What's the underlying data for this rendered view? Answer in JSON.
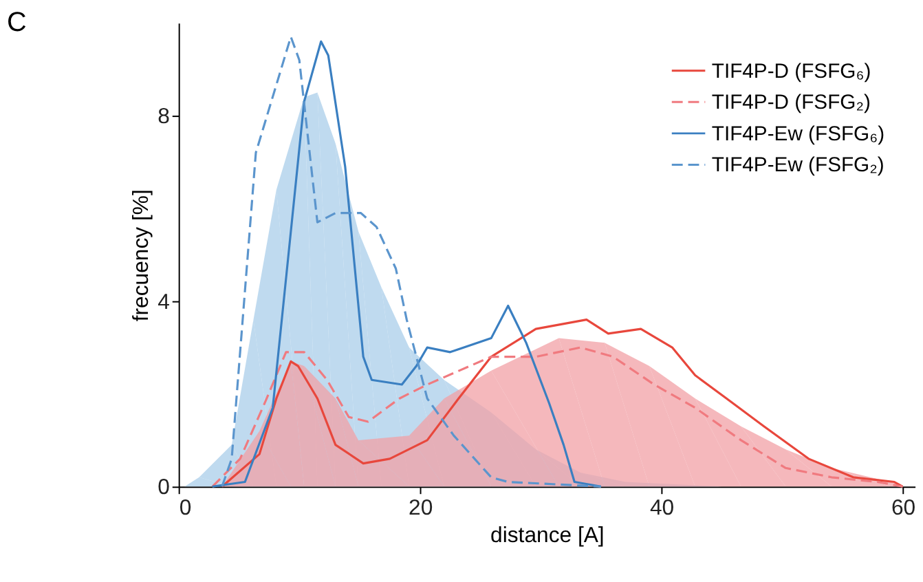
{
  "chart_data": {
    "type": "line",
    "title": "C",
    "xlabel": "distance [A]",
    "ylabel": "frecuency [%]",
    "xlim": [
      0,
      61
    ],
    "xticks": [
      0,
      20,
      40,
      60
    ],
    "ylim": [
      0,
      10
    ],
    "yticks": [
      0,
      4,
      8
    ],
    "grid": false,
    "legend": "top right",
    "series": [
      {
        "type": "area",
        "color": "#a9cde9",
        "x": [
          0.5,
          1.7,
          4.4,
          6.2,
          8.1,
          10.4,
          11.5,
          13,
          14.9,
          16.8,
          19.1,
          22,
          25.9,
          29.6,
          33.3,
          37,
          45
        ],
        "values": [
          0,
          0.2,
          0.9,
          3.6,
          6.4,
          8.4,
          8.5,
          7.4,
          5.5,
          4.3,
          3.0,
          2.3,
          1.6,
          0.8,
          0.3,
          0.1,
          0
        ]
      },
      {
        "type": "area",
        "color": "#f2a0a6",
        "x": [
          3.6,
          6.7,
          9.3,
          10.4,
          13,
          14.9,
          19.1,
          22,
          25.9,
          31.5,
          35.3,
          39,
          42.8,
          46.6,
          50.3,
          54.1,
          59,
          60
        ],
        "values": [
          0,
          1.2,
          2.7,
          2.6,
          1.9,
          1.0,
          1.1,
          1.9,
          2.5,
          3.2,
          3.1,
          2.6,
          1.9,
          1.3,
          0.8,
          0.4,
          0.1,
          0
        ]
      },
      {
        "name": "TIF4P-D (FSFG₆)",
        "color": "#e8473c",
        "line_style": "solid",
        "x": [
          3.6,
          6.7,
          8.1,
          9.3,
          9.9,
          11.5,
          13,
          15.3,
          17.5,
          20.6,
          23.2,
          25.9,
          29.6,
          33.8,
          35.6,
          38.3,
          40.9,
          42.8,
          45.4,
          48.5,
          52.2,
          55.9,
          59.3,
          60
        ],
        "values": [
          0,
          0.7,
          1.9,
          2.7,
          2.6,
          1.9,
          0.9,
          0.5,
          0.6,
          1.0,
          1.9,
          2.8,
          3.4,
          3.6,
          3.3,
          3.4,
          3.0,
          2.4,
          1.9,
          1.3,
          0.6,
          0.2,
          0.1,
          0
        ]
      },
      {
        "name": "TIF4P-D (FSFG₂)",
        "color": "#f07a7f",
        "line_style": "dashed",
        "x": [
          2.8,
          5.1,
          7.3,
          8.9,
          10.4,
          12.3,
          14.1,
          15.7,
          18.3,
          20.6,
          25.9,
          29.6,
          33.3,
          36,
          39.4,
          42.8,
          46.6,
          50.3,
          54.1,
          57.9,
          60
        ],
        "values": [
          0,
          0.6,
          1.9,
          2.9,
          2.9,
          2.3,
          1.5,
          1.4,
          1.9,
          2.2,
          2.8,
          2.8,
          3.0,
          2.8,
          2.2,
          1.7,
          1.0,
          0.4,
          0.2,
          0.1,
          0
        ]
      },
      {
        "name": "TIF4P-Ew (FSFG₆)",
        "color": "#3a7fc1",
        "line_style": "solid",
        "x": [
          2.8,
          5.5,
          7.8,
          9.3,
          10.4,
          11.8,
          12.4,
          13.8,
          15.3,
          16,
          18.5,
          19.7,
          20.6,
          22.5,
          25.9,
          27.3,
          28.8,
          30.7,
          31.9,
          32.8,
          35
        ],
        "values": [
          0,
          0.1,
          1.7,
          5.5,
          8.3,
          9.6,
          9.3,
          6.9,
          2.8,
          2.3,
          2.2,
          2.6,
          3.0,
          2.9,
          3.2,
          3.9,
          3.1,
          1.8,
          0.9,
          0.1,
          0
        ]
      },
      {
        "name": "TIF4P-Ew (FSFG₂)",
        "color": "#5b95cd",
        "line_style": "dashed",
        "x": [
          3.6,
          4.4,
          6.4,
          9.3,
          10,
          11.5,
          13,
          15.1,
          16.4,
          18,
          18.9,
          20.6,
          22.8,
          25.9,
          27.3,
          35
        ],
        "values": [
          0,
          0.6,
          7.2,
          9.7,
          9.2,
          5.7,
          5.9,
          5.9,
          5.6,
          4.7,
          3.6,
          1.9,
          1.1,
          0.2,
          0.1,
          0
        ]
      }
    ]
  }
}
